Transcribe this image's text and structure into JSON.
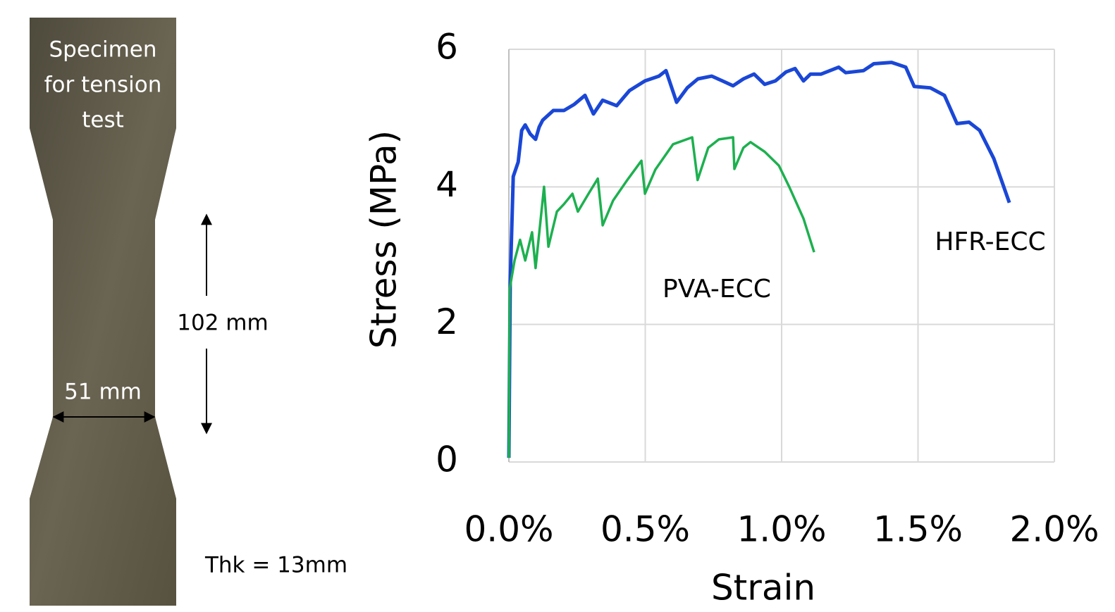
{
  "specimen": {
    "label": [
      "Specimen",
      "for tension",
      "test"
    ],
    "length": "102 mm",
    "width": "51 mm",
    "thickness": "Thk = 13mm"
  },
  "chart_data": {
    "type": "line",
    "xlabel": "Strain",
    "ylabel": "Stress (MPa)",
    "xlim": [
      0,
      2
    ],
    "xticks": [
      {
        "value": 0,
        "label": "0.0%"
      },
      {
        "value": 0.5,
        "label": "0.5%"
      },
      {
        "value": 1,
        "label": "1.0%"
      },
      {
        "value": 1.5,
        "label": "1.5%"
      },
      {
        "value": 2,
        "label": "2.0%"
      }
    ],
    "ylim": [
      0,
      6
    ],
    "yticks": [
      0,
      2,
      4,
      6
    ],
    "grid": true,
    "annotations": [
      "PVA-ECC",
      "HFR-ECC"
    ],
    "series": [
      {
        "name": "HFR-ECC",
        "color": "#1a47d6",
        "x": [
          0,
          0.005,
          0.016,
          0.034,
          0.047,
          0.06,
          0.078,
          0.098,
          0.111,
          0.124,
          0.163,
          0.202,
          0.24,
          0.279,
          0.31,
          0.344,
          0.395,
          0.442,
          0.499,
          0.55,
          0.576,
          0.615,
          0.654,
          0.693,
          0.744,
          0.783,
          0.822,
          0.86,
          0.899,
          0.938,
          0.977,
          1.016,
          1.049,
          1.08,
          1.106,
          1.145,
          1.209,
          1.235,
          1.3,
          1.338,
          1.403,
          1.455,
          1.486,
          1.545,
          1.597,
          1.643,
          1.687,
          1.726,
          1.778,
          1.835
        ],
        "values": [
          0.06,
          2.6,
          4.15,
          4.36,
          4.82,
          4.9,
          4.77,
          4.69,
          4.87,
          4.97,
          5.11,
          5.11,
          5.2,
          5.33,
          5.06,
          5.26,
          5.18,
          5.4,
          5.54,
          5.61,
          5.69,
          5.23,
          5.44,
          5.57,
          5.61,
          5.54,
          5.47,
          5.57,
          5.64,
          5.49,
          5.54,
          5.67,
          5.72,
          5.54,
          5.64,
          5.64,
          5.74,
          5.66,
          5.69,
          5.79,
          5.81,
          5.74,
          5.46,
          5.44,
          5.33,
          4.92,
          4.94,
          4.82,
          4.41,
          3.77
        ]
      },
      {
        "name": "PVA-ECC",
        "color": "#1db04f",
        "x": [
          0,
          0.003,
          0.021,
          0.041,
          0.06,
          0.085,
          0.098,
          0.129,
          0.145,
          0.176,
          0.202,
          0.233,
          0.253,
          0.292,
          0.326,
          0.344,
          0.382,
          0.434,
          0.486,
          0.499,
          0.537,
          0.602,
          0.672,
          0.692,
          0.731,
          0.77,
          0.822,
          0.827,
          0.86,
          0.886,
          0.938,
          0.99,
          1.028,
          1.08,
          1.119
        ],
        "values": [
          0.06,
          2.52,
          2.93,
          3.23,
          2.93,
          3.34,
          2.82,
          4.0,
          3.13,
          3.64,
          3.75,
          3.9,
          3.64,
          3.9,
          4.12,
          3.44,
          3.8,
          4.1,
          4.38,
          3.9,
          4.25,
          4.62,
          4.72,
          4.1,
          4.57,
          4.69,
          4.72,
          4.26,
          4.57,
          4.65,
          4.51,
          4.31,
          4.0,
          3.54,
          3.05
        ]
      }
    ]
  }
}
